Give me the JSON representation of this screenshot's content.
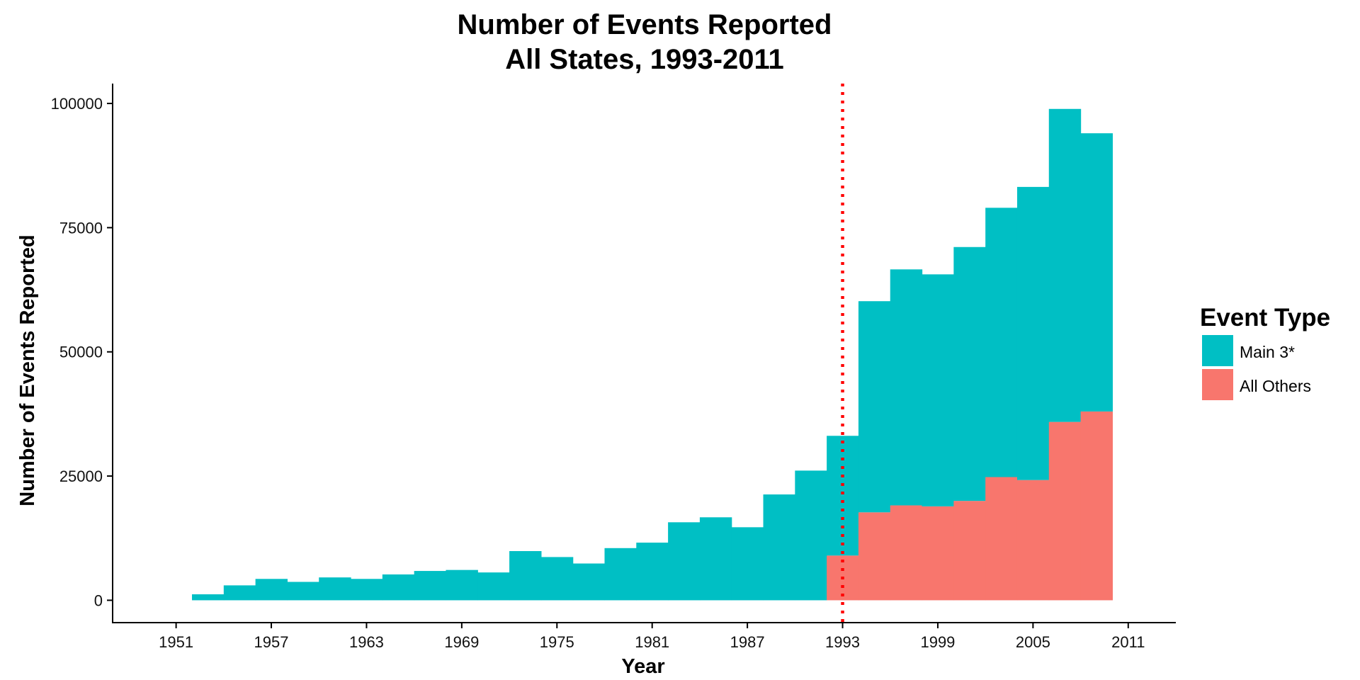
{
  "colors": {
    "main3": "#00BFC4",
    "others": "#F8766D",
    "marker": "#FF0000",
    "axis": "#000000"
  },
  "chart_data": {
    "type": "bar",
    "title": "Number of Events Reported",
    "subtitle": "All States, 1993-2011",
    "xlabel": "Year",
    "ylabel": "Number of Events Reported",
    "x_ticks": [
      1951,
      1957,
      1963,
      1969,
      1975,
      1981,
      1987,
      1993,
      1999,
      2005,
      2011
    ],
    "y_ticks": [
      0,
      25000,
      50000,
      75000,
      100000
    ],
    "xlim": [
      1947,
      2014
    ],
    "ylim": [
      -4500,
      104000
    ],
    "bin_width": 2,
    "stacked": true,
    "vline": {
      "x": 1993,
      "style": "dotted"
    },
    "categories": [
      1953,
      1955,
      1957,
      1959,
      1961,
      1963,
      1965,
      1967,
      1969,
      1971,
      1973,
      1975,
      1977,
      1979,
      1981,
      1983,
      1985,
      1987,
      1989,
      1991,
      1993,
      1995,
      1997,
      1999,
      2001,
      2003,
      2005,
      2007,
      2009,
      2011
    ],
    "series": [
      {
        "name": "Main 3*",
        "color": "#00BFC4",
        "values": [
          1200,
          3000,
          4300,
          3700,
          4600,
          4300,
          5200,
          5900,
          6100,
          5600,
          9900,
          8700,
          7400,
          10500,
          11600,
          15700,
          16700,
          14700,
          21300,
          26100,
          24100,
          42500,
          47500,
          46700,
          51100,
          54200,
          59000,
          63000,
          56000,
          0
        ]
      },
      {
        "name": "All Others",
        "color": "#F8766D",
        "values": [
          0,
          0,
          0,
          0,
          0,
          0,
          0,
          0,
          0,
          0,
          0,
          0,
          0,
          0,
          0,
          0,
          0,
          0,
          0,
          0,
          9000,
          17700,
          19100,
          18900,
          20000,
          24800,
          24200,
          35900,
          38000,
          0
        ]
      }
    ],
    "legend": {
      "title": "Event Type",
      "position": "right",
      "entries": [
        "Main 3*",
        "All Others"
      ]
    },
    "grid": false
  }
}
